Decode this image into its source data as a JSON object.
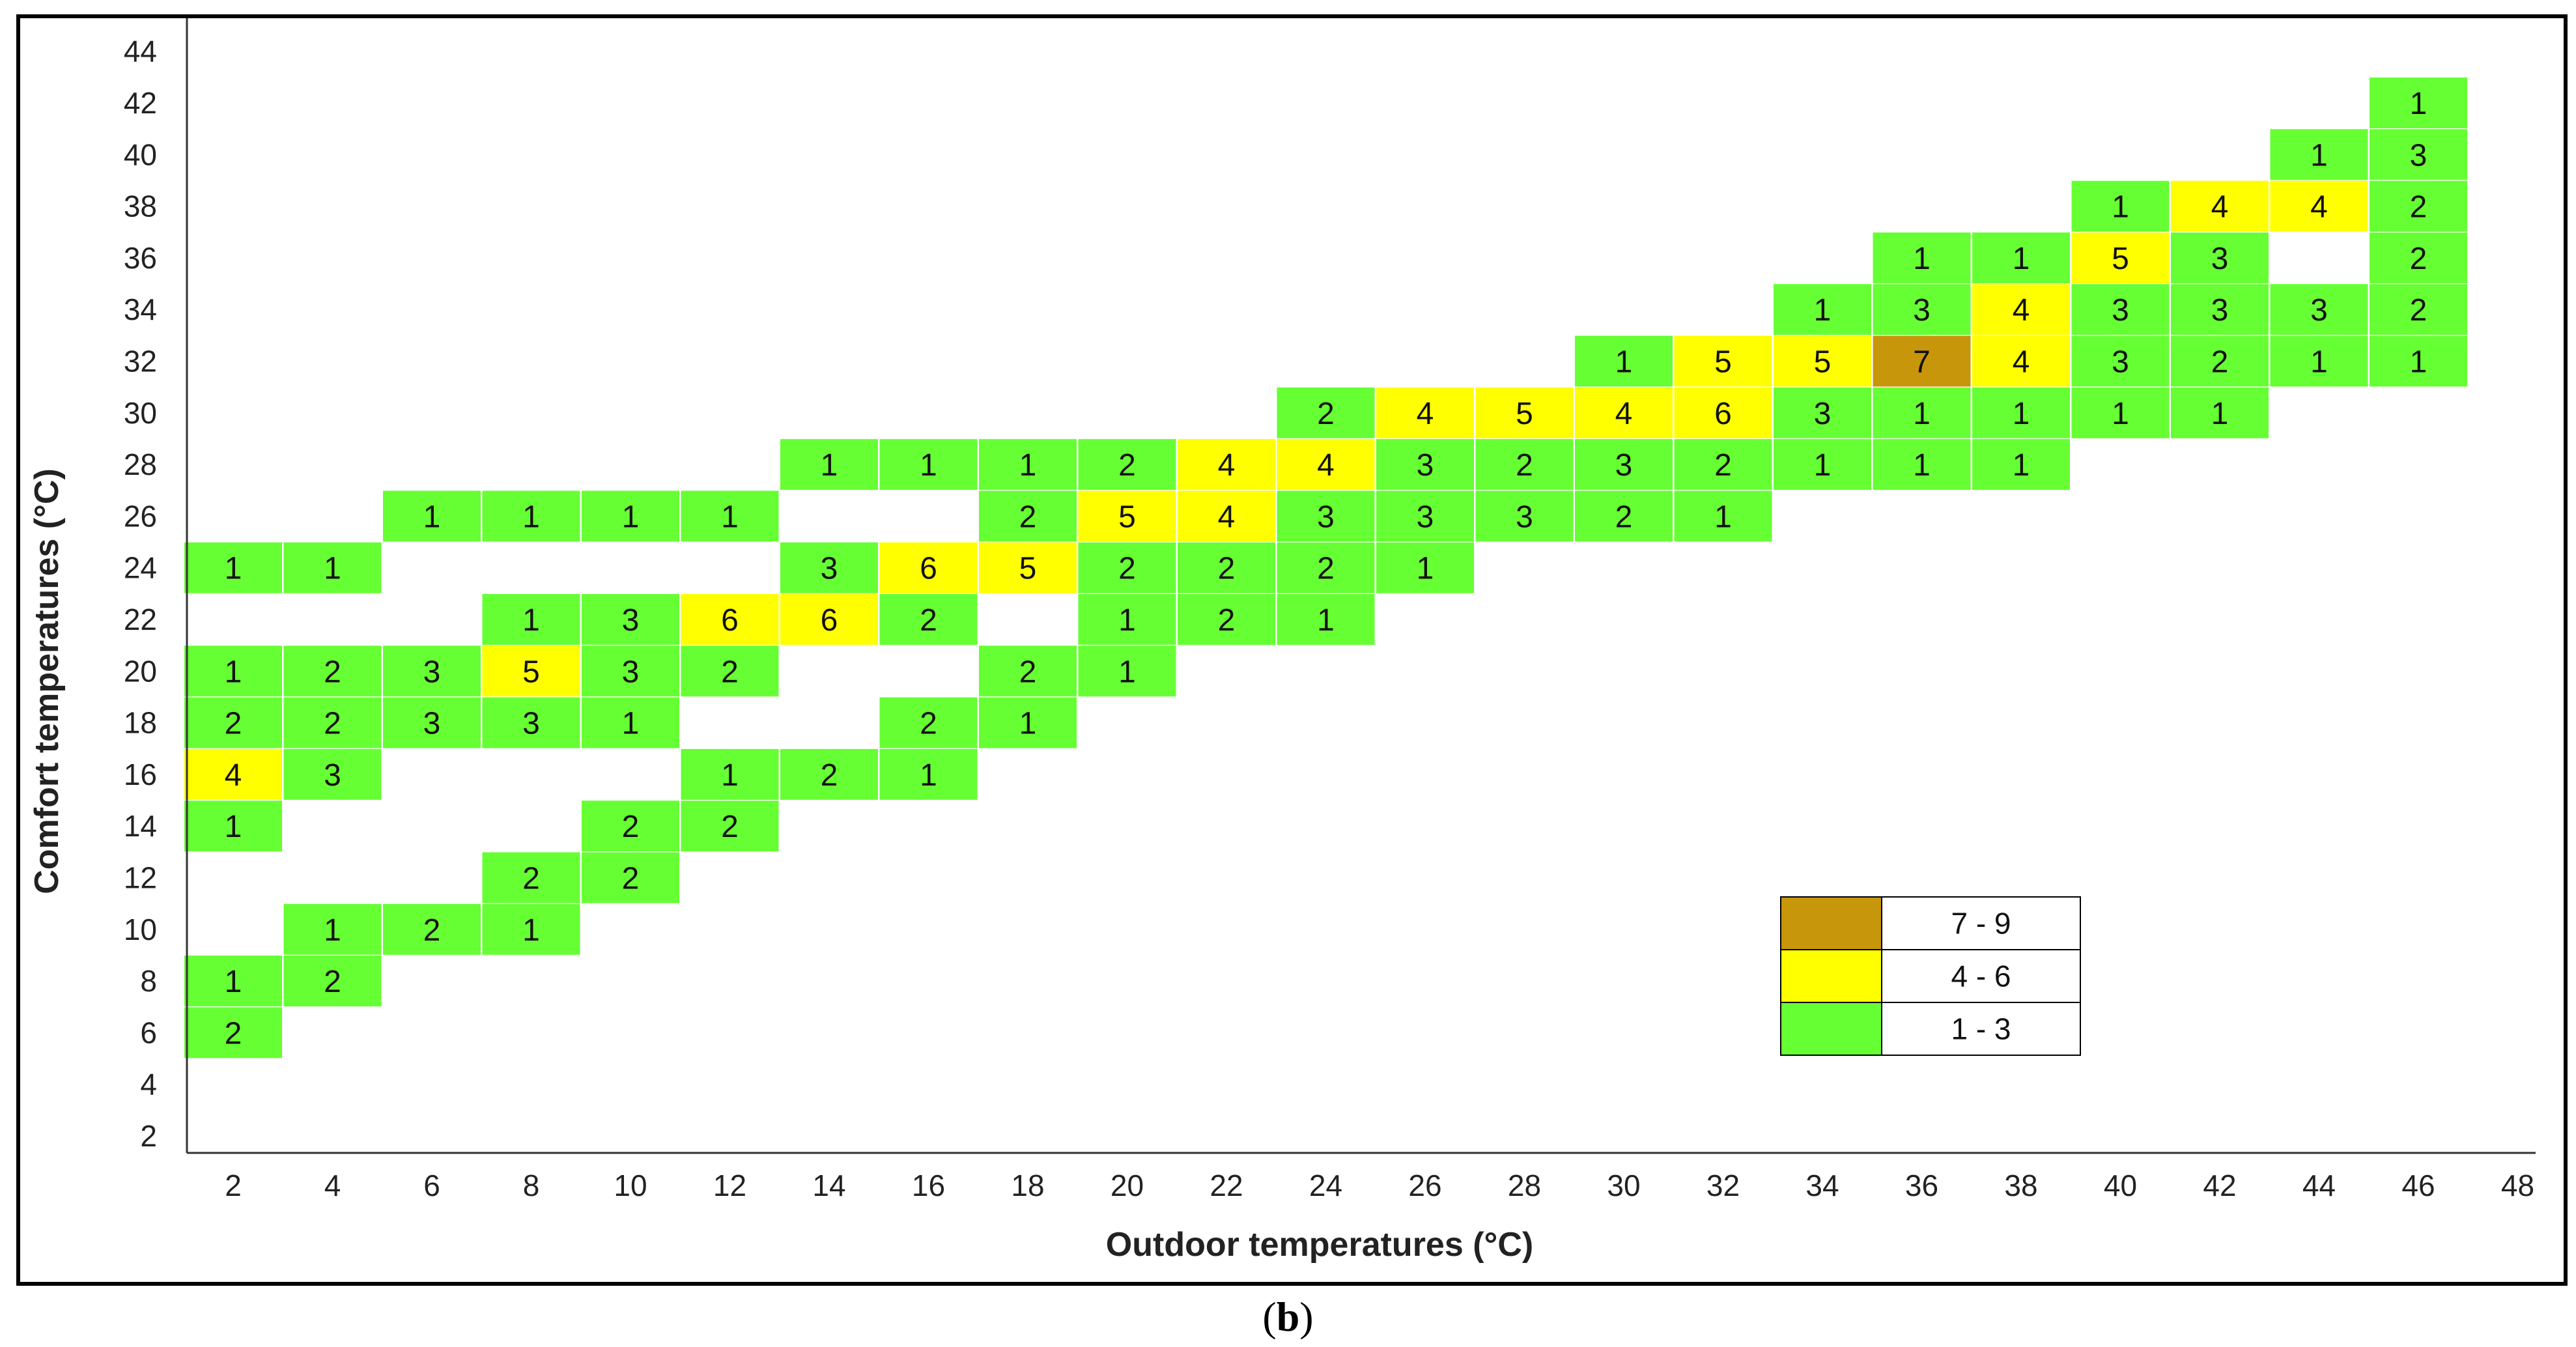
{
  "chart_data": {
    "type": "heatmap",
    "xlabel": "Outdoor temperatures (°C)",
    "ylabel": "Comfort temperatures (°C)",
    "x_ticks": [
      2,
      4,
      6,
      8,
      10,
      12,
      14,
      16,
      18,
      20,
      22,
      24,
      26,
      28,
      30,
      32,
      34,
      36,
      38,
      40,
      42,
      44,
      46,
      48
    ],
    "y_ticks": [
      2,
      4,
      6,
      8,
      10,
      12,
      14,
      16,
      18,
      20,
      22,
      24,
      26,
      28,
      30,
      32,
      34,
      36,
      38,
      40,
      42,
      44
    ],
    "xlim": [
      2,
      48
    ],
    "ylim": [
      2,
      44
    ],
    "cells": [
      {
        "x": 2,
        "y": 6,
        "v": 2
      },
      {
        "x": 2,
        "y": 8,
        "v": 1
      },
      {
        "x": 2,
        "y": 14,
        "v": 1
      },
      {
        "x": 2,
        "y": 16,
        "v": 4
      },
      {
        "x": 2,
        "y": 18,
        "v": 2
      },
      {
        "x": 2,
        "y": 20,
        "v": 1
      },
      {
        "x": 2,
        "y": 24,
        "v": 1
      },
      {
        "x": 4,
        "y": 8,
        "v": 2
      },
      {
        "x": 4,
        "y": 10,
        "v": 1
      },
      {
        "x": 4,
        "y": 16,
        "v": 3
      },
      {
        "x": 4,
        "y": 18,
        "v": 2
      },
      {
        "x": 4,
        "y": 20,
        "v": 2
      },
      {
        "x": 4,
        "y": 24,
        "v": 1
      },
      {
        "x": 6,
        "y": 10,
        "v": 2
      },
      {
        "x": 6,
        "y": 18,
        "v": 3
      },
      {
        "x": 6,
        "y": 20,
        "v": 3
      },
      {
        "x": 6,
        "y": 26,
        "v": 1
      },
      {
        "x": 8,
        "y": 10,
        "v": 1
      },
      {
        "x": 8,
        "y": 12,
        "v": 2
      },
      {
        "x": 8,
        "y": 18,
        "v": 3
      },
      {
        "x": 8,
        "y": 20,
        "v": 5
      },
      {
        "x": 8,
        "y": 22,
        "v": 1
      },
      {
        "x": 8,
        "y": 26,
        "v": 1
      },
      {
        "x": 10,
        "y": 12,
        "v": 2
      },
      {
        "x": 10,
        "y": 14,
        "v": 2
      },
      {
        "x": 10,
        "y": 18,
        "v": 1
      },
      {
        "x": 10,
        "y": 20,
        "v": 3
      },
      {
        "x": 10,
        "y": 22,
        "v": 3
      },
      {
        "x": 10,
        "y": 26,
        "v": 1
      },
      {
        "x": 12,
        "y": 14,
        "v": 2
      },
      {
        "x": 12,
        "y": 16,
        "v": 1
      },
      {
        "x": 12,
        "y": 20,
        "v": 2
      },
      {
        "x": 12,
        "y": 22,
        "v": 6
      },
      {
        "x": 12,
        "y": 26,
        "v": 1
      },
      {
        "x": 14,
        "y": 16,
        "v": 2
      },
      {
        "x": 14,
        "y": 22,
        "v": 6
      },
      {
        "x": 14,
        "y": 24,
        "v": 3
      },
      {
        "x": 14,
        "y": 28,
        "v": 1
      },
      {
        "x": 16,
        "y": 16,
        "v": 1
      },
      {
        "x": 16,
        "y": 18,
        "v": 2
      },
      {
        "x": 16,
        "y": 22,
        "v": 2
      },
      {
        "x": 16,
        "y": 24,
        "v": 6
      },
      {
        "x": 16,
        "y": 28,
        "v": 1
      },
      {
        "x": 18,
        "y": 18,
        "v": 1
      },
      {
        "x": 18,
        "y": 20,
        "v": 2
      },
      {
        "x": 18,
        "y": 24,
        "v": 5
      },
      {
        "x": 18,
        "y": 26,
        "v": 2
      },
      {
        "x": 18,
        "y": 28,
        "v": 1
      },
      {
        "x": 20,
        "y": 20,
        "v": 1
      },
      {
        "x": 20,
        "y": 22,
        "v": 1
      },
      {
        "x": 20,
        "y": 24,
        "v": 2
      },
      {
        "x": 20,
        "y": 26,
        "v": 5
      },
      {
        "x": 20,
        "y": 28,
        "v": 2
      },
      {
        "x": 22,
        "y": 22,
        "v": 2
      },
      {
        "x": 22,
        "y": 24,
        "v": 2
      },
      {
        "x": 22,
        "y": 26,
        "v": 4
      },
      {
        "x": 22,
        "y": 28,
        "v": 4
      },
      {
        "x": 24,
        "y": 22,
        "v": 1
      },
      {
        "x": 24,
        "y": 24,
        "v": 2
      },
      {
        "x": 24,
        "y": 26,
        "v": 3
      },
      {
        "x": 24,
        "y": 28,
        "v": 4
      },
      {
        "x": 24,
        "y": 30,
        "v": 2
      },
      {
        "x": 26,
        "y": 24,
        "v": 1
      },
      {
        "x": 26,
        "y": 26,
        "v": 3
      },
      {
        "x": 26,
        "y": 28,
        "v": 3
      },
      {
        "x": 26,
        "y": 30,
        "v": 4
      },
      {
        "x": 28,
        "y": 26,
        "v": 3
      },
      {
        "x": 28,
        "y": 28,
        "v": 2
      },
      {
        "x": 28,
        "y": 30,
        "v": 5
      },
      {
        "x": 30,
        "y": 26,
        "v": 2
      },
      {
        "x": 30,
        "y": 28,
        "v": 3
      },
      {
        "x": 30,
        "y": 30,
        "v": 4
      },
      {
        "x": 30,
        "y": 32,
        "v": 1
      },
      {
        "x": 32,
        "y": 26,
        "v": 1
      },
      {
        "x": 32,
        "y": 28,
        "v": 2
      },
      {
        "x": 32,
        "y": 30,
        "v": 6
      },
      {
        "x": 32,
        "y": 32,
        "v": 5
      },
      {
        "x": 34,
        "y": 28,
        "v": 1
      },
      {
        "x": 34,
        "y": 30,
        "v": 3
      },
      {
        "x": 34,
        "y": 32,
        "v": 5
      },
      {
        "x": 34,
        "y": 34,
        "v": 1
      },
      {
        "x": 36,
        "y": 28,
        "v": 1
      },
      {
        "x": 36,
        "y": 30,
        "v": 1
      },
      {
        "x": 36,
        "y": 32,
        "v": 7
      },
      {
        "x": 36,
        "y": 34,
        "v": 3
      },
      {
        "x": 36,
        "y": 36,
        "v": 1
      },
      {
        "x": 38,
        "y": 28,
        "v": 1
      },
      {
        "x": 38,
        "y": 30,
        "v": 1
      },
      {
        "x": 38,
        "y": 32,
        "v": 4
      },
      {
        "x": 38,
        "y": 34,
        "v": 4
      },
      {
        "x": 38,
        "y": 36,
        "v": 1
      },
      {
        "x": 40,
        "y": 30,
        "v": 1
      },
      {
        "x": 40,
        "y": 32,
        "v": 3
      },
      {
        "x": 40,
        "y": 34,
        "v": 3
      },
      {
        "x": 40,
        "y": 36,
        "v": 5
      },
      {
        "x": 40,
        "y": 38,
        "v": 1
      },
      {
        "x": 42,
        "y": 30,
        "v": 1
      },
      {
        "x": 42,
        "y": 32,
        "v": 2
      },
      {
        "x": 42,
        "y": 34,
        "v": 3
      },
      {
        "x": 42,
        "y": 36,
        "v": 3
      },
      {
        "x": 42,
        "y": 38,
        "v": 4
      },
      {
        "x": 44,
        "y": 32,
        "v": 1
      },
      {
        "x": 44,
        "y": 34,
        "v": 3
      },
      {
        "x": 44,
        "y": 38,
        "v": 4
      },
      {
        "x": 44,
        "y": 40,
        "v": 1
      },
      {
        "x": 46,
        "y": 32,
        "v": 1
      },
      {
        "x": 46,
        "y": 34,
        "v": 2
      },
      {
        "x": 46,
        "y": 36,
        "v": 2
      },
      {
        "x": 46,
        "y": 38,
        "v": 2
      },
      {
        "x": 46,
        "y": 40,
        "v": 3
      },
      {
        "x": 46,
        "y": 42,
        "v": 1
      }
    ],
    "legend": {
      "position": "bottom-right",
      "entries": [
        {
          "label": "7 - 9",
          "color": "#C8960A",
          "min": 7,
          "max": 9
        },
        {
          "label": "4 - 6",
          "color": "#FFFF00",
          "min": 4,
          "max": 6
        },
        {
          "label": "1 - 3",
          "color": "#66FF33",
          "min": 1,
          "max": 3
        }
      ]
    },
    "grid": false
  },
  "caption": {
    "open": "(",
    "letter": "b",
    "close": ")"
  }
}
